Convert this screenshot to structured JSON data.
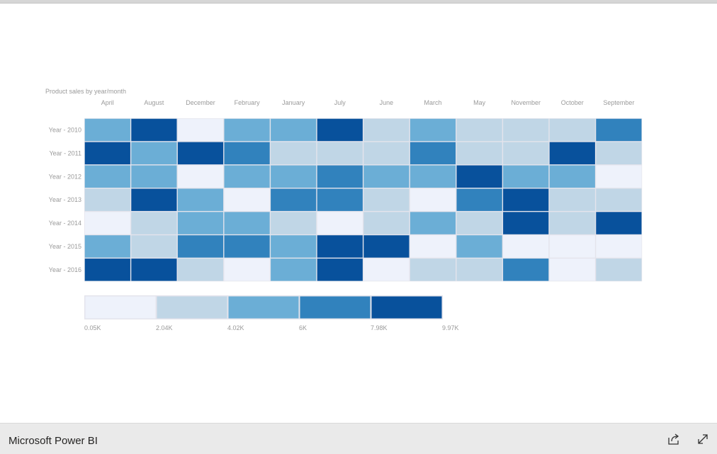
{
  "footer": {
    "title": "Microsoft Power BI",
    "share_icon": "share-icon",
    "expand_icon": "expand-icon"
  },
  "colors": {
    "scale": [
      "#eef2fb",
      "#c0d6e6",
      "#6baed6",
      "#3182bd",
      "#08519c"
    ],
    "axis_text": "#9a9a9a",
    "cell_border": "#e4e4ec"
  },
  "chart_data": {
    "type": "heatmap",
    "title": "Product sales by year/month",
    "columns": [
      "April",
      "August",
      "December",
      "February",
      "January",
      "July",
      "June",
      "March",
      "May",
      "November",
      "October",
      "September"
    ],
    "rows": [
      "Year - 2010",
      "Year - 2011",
      "Year - 2012",
      "Year - 2013",
      "Year - 2014",
      "Year - 2015",
      "Year - 2016"
    ],
    "values": [
      [
        5.0,
        9.0,
        1.0,
        5.0,
        5.0,
        9.0,
        3.0,
        5.0,
        3.0,
        3.0,
        3.0,
        7.0
      ],
      [
        9.0,
        5.0,
        9.0,
        7.0,
        3.0,
        3.0,
        3.0,
        7.0,
        3.0,
        3.0,
        9.0,
        3.0
      ],
      [
        5.0,
        5.0,
        1.0,
        5.0,
        5.0,
        7.0,
        5.0,
        5.0,
        9.0,
        5.0,
        5.0,
        1.0
      ],
      [
        3.0,
        9.0,
        5.0,
        1.0,
        7.0,
        7.0,
        3.0,
        1.0,
        7.0,
        9.0,
        3.0,
        3.0
      ],
      [
        1.0,
        3.0,
        5.0,
        5.0,
        3.0,
        1.0,
        3.0,
        5.0,
        3.0,
        9.0,
        3.0,
        9.0
      ],
      [
        5.0,
        3.0,
        7.0,
        7.0,
        5.0,
        9.0,
        9.0,
        1.0,
        5.0,
        1.0,
        1.0,
        1.0
      ],
      [
        9.0,
        9.0,
        3.0,
        1.0,
        5.0,
        9.0,
        1.0,
        3.0,
        3.0,
        7.0,
        1.0,
        3.0
      ]
    ],
    "legend": {
      "bins": 5,
      "labels": [
        "0.05K",
        "2.04K",
        "4.02K",
        "6K",
        "7.98K",
        "9.97K"
      ]
    },
    "value_unit": "K"
  }
}
